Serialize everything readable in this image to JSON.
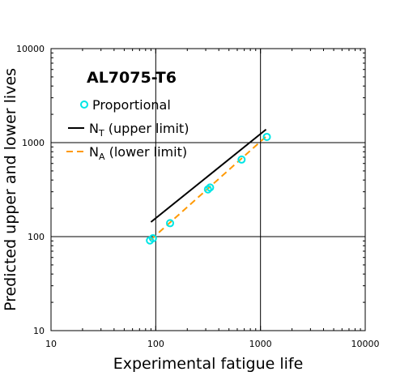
{
  "chart_data": {
    "type": "scatter",
    "annotation": "AL7075-T6",
    "xlabel": "Experimental fatigue life",
    "ylabel": "Predicted upper and lower lives",
    "xscale": "log",
    "yscale": "log",
    "xlim": [
      10,
      10000
    ],
    "ylim": [
      10,
      10000
    ],
    "grid": true,
    "x_ticks": [
      10,
      100,
      1000,
      10000
    ],
    "y_ticks": [
      10,
      100,
      1000,
      10000
    ],
    "x_tick_labels": [
      "10",
      "100",
      "1000",
      "10000"
    ],
    "y_tick_labels": [
      "10",
      "100",
      "1000",
      "10000"
    ],
    "legend_position": "top-left",
    "series": [
      {
        "name": "Proportional",
        "kind": "markers",
        "color": "#00e5e5",
        "points": [
          [
            88,
            91
          ],
          [
            94,
            96
          ],
          [
            137,
            139
          ],
          [
            315,
            318
          ],
          [
            330,
            333
          ],
          [
            660,
            660
          ],
          [
            1150,
            1150
          ]
        ]
      },
      {
        "name_main": "N",
        "name_sub": "T",
        "name_rest": " (upper limit)",
        "kind": "line",
        "style": "solid",
        "color": "#000000",
        "points": [
          [
            90,
            143
          ],
          [
            1130,
            1380
          ]
        ]
      },
      {
        "name_main": "N",
        "name_sub": "A",
        "name_rest": " (lower limit)",
        "kind": "line",
        "style": "dashed",
        "color": "#ff9900",
        "points": [
          [
            90,
            93
          ],
          [
            1130,
            1160
          ]
        ]
      }
    ]
  }
}
